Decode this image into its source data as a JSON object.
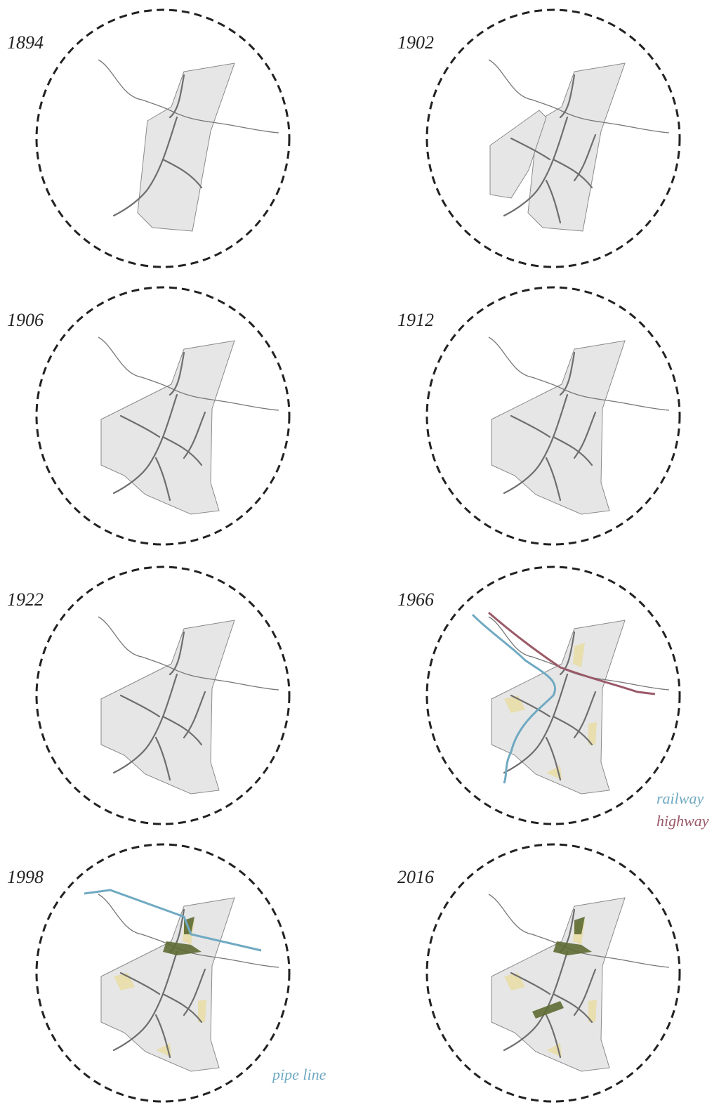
{
  "panels": [
    {
      "year": "1894"
    },
    {
      "year": "1902"
    },
    {
      "year": "1906"
    },
    {
      "year": "1912"
    },
    {
      "year": "1922"
    },
    {
      "year": "1966"
    },
    {
      "year": "1998"
    },
    {
      "year": "2016"
    }
  ],
  "legend": {
    "railway": "railway",
    "highway": "highway",
    "pipe_line": "pipe line"
  }
}
